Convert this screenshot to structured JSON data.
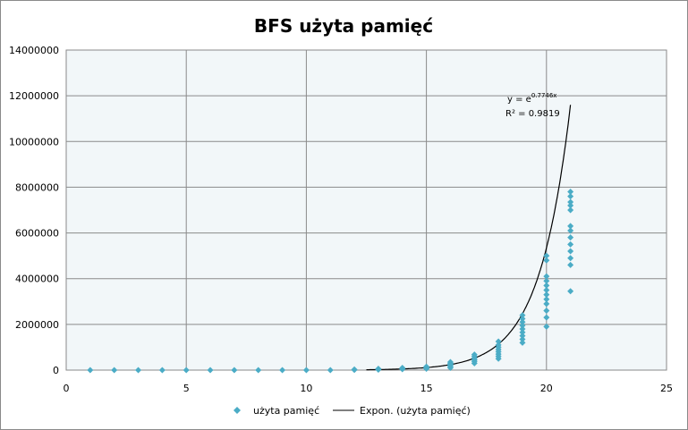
{
  "chart_data": {
    "type": "scatter",
    "title": "BFS użyta pamięć",
    "xlabel": "",
    "ylabel": "",
    "xlim": [
      0,
      25
    ],
    "ylim": [
      0,
      14000000
    ],
    "x_ticks": [
      "0",
      "5",
      "10",
      "15",
      "20",
      "25"
    ],
    "y_ticks": [
      "0",
      "2000000",
      "4000000",
      "6000000",
      "8000000",
      "10000000",
      "12000000",
      "14000000"
    ],
    "grid": true,
    "legend_position": "bottom",
    "series": [
      {
        "name": "użyta pamięć",
        "color": "#4bacc6",
        "marker": "diamond",
        "points": [
          [
            1,
            0
          ],
          [
            2,
            0
          ],
          [
            3,
            0
          ],
          [
            4,
            0
          ],
          [
            5,
            0
          ],
          [
            6,
            0
          ],
          [
            7,
            0
          ],
          [
            8,
            0
          ],
          [
            9,
            0
          ],
          [
            10,
            0
          ],
          [
            11,
            0
          ],
          [
            12,
            10000
          ],
          [
            12,
            30000
          ],
          [
            13,
            20000
          ],
          [
            13,
            40000
          ],
          [
            13,
            60000
          ],
          [
            14,
            40000
          ],
          [
            14,
            70000
          ],
          [
            14,
            100000
          ],
          [
            15,
            60000
          ],
          [
            15,
            90000
          ],
          [
            15,
            120000
          ],
          [
            15,
            150000
          ],
          [
            16,
            100000
          ],
          [
            16,
            150000
          ],
          [
            16,
            200000
          ],
          [
            16,
            250000
          ],
          [
            16,
            300000
          ],
          [
            16,
            350000
          ],
          [
            17,
            300000
          ],
          [
            17,
            380000
          ],
          [
            17,
            450000
          ],
          [
            17,
            520000
          ],
          [
            17,
            600000
          ],
          [
            17,
            680000
          ],
          [
            18,
            500000
          ],
          [
            18,
            600000
          ],
          [
            18,
            700000
          ],
          [
            18,
            800000
          ],
          [
            18,
            900000
          ],
          [
            18,
            1000000
          ],
          [
            18,
            1100000
          ],
          [
            18,
            1250000
          ],
          [
            19,
            1200000
          ],
          [
            19,
            1350000
          ],
          [
            19,
            1500000
          ],
          [
            19,
            1650000
          ],
          [
            19,
            1800000
          ],
          [
            19,
            1950000
          ],
          [
            19,
            2100000
          ],
          [
            19,
            2250000
          ],
          [
            19,
            2400000
          ],
          [
            20,
            1900000
          ],
          [
            20,
            2300000
          ],
          [
            20,
            2600000
          ],
          [
            20,
            2900000
          ],
          [
            20,
            3100000
          ],
          [
            20,
            3300000
          ],
          [
            20,
            3500000
          ],
          [
            20,
            3700000
          ],
          [
            20,
            3900000
          ],
          [
            20,
            4100000
          ],
          [
            20,
            4800000
          ],
          [
            20,
            5000000
          ],
          [
            21,
            3450000
          ],
          [
            21,
            4600000
          ],
          [
            21,
            4900000
          ],
          [
            21,
            5200000
          ],
          [
            21,
            5500000
          ],
          [
            21,
            5800000
          ],
          [
            21,
            6100000
          ],
          [
            21,
            6300000
          ],
          [
            21,
            7000000
          ],
          [
            21,
            7200000
          ],
          [
            21,
            7350000
          ],
          [
            21,
            7600000
          ],
          [
            21,
            7800000
          ]
        ]
      },
      {
        "name": "Expon. (użyta pamięć)",
        "color": "#000000",
        "type": "trendline",
        "function": "exp",
        "coefficient": 0.7746,
        "x_range": [
          12.5,
          21
        ]
      }
    ],
    "annotations": {
      "equation_main": "y = e",
      "equation_exp": "0.7746x",
      "r_squared": "R² = 0.9819"
    }
  }
}
